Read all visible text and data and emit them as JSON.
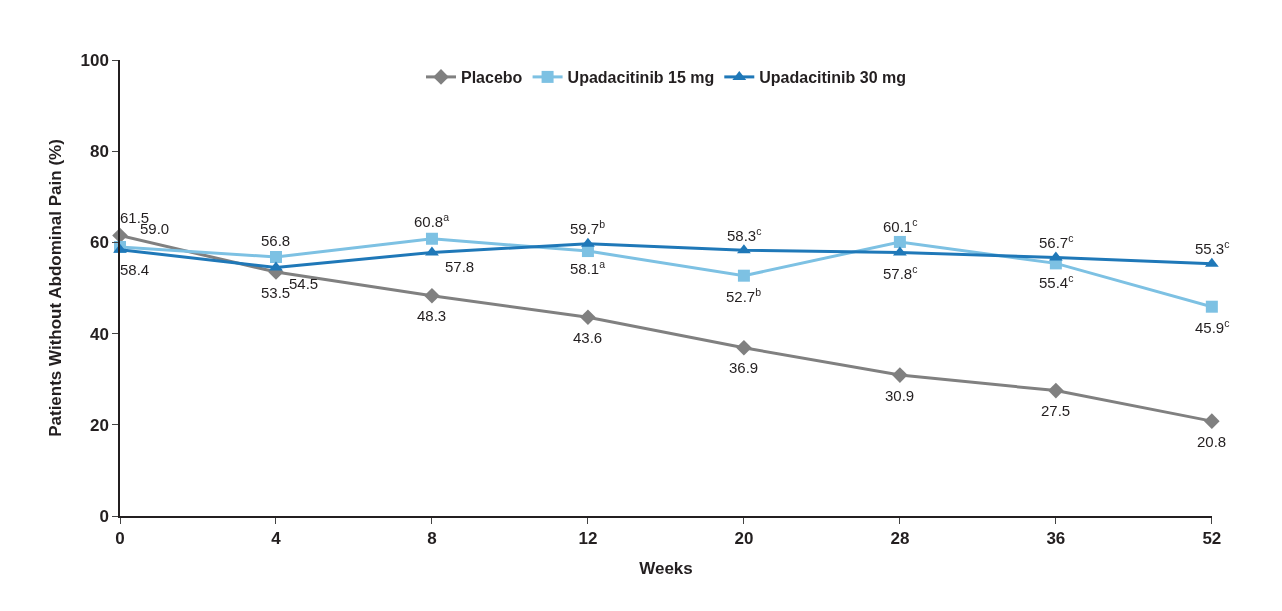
{
  "chart_data": {
    "type": "line",
    "xlabel": "Weeks",
    "ylabel": "Patients Without Abdominal Pain (%)",
    "categories": [
      "0",
      "4",
      "8",
      "12",
      "20",
      "28",
      "36",
      "52"
    ],
    "ylim": [
      0,
      100
    ],
    "yticks": [
      0,
      20,
      40,
      60,
      80,
      100
    ],
    "legend": "top",
    "series": [
      {
        "name": "Placebo",
        "color": "#808080",
        "marker": "diamond",
        "values": [
          61.5,
          53.5,
          48.3,
          43.6,
          36.9,
          30.9,
          27.5,
          20.8
        ],
        "value_labels": [
          "61.5",
          "53.5",
          "48.3",
          "43.6",
          "36.9",
          "30.9",
          "27.5",
          "20.8"
        ]
      },
      {
        "name": "Upadacitinib 15 mg",
        "color": "#7dc1e3",
        "marker": "square",
        "values": [
          59.0,
          56.8,
          60.8,
          58.1,
          52.7,
          60.1,
          55.4,
          45.9
        ],
        "value_labels": [
          "59.0",
          "56.8",
          "60.8$^{a}$",
          "58.1$^{a}$",
          "52.7$^{b}$",
          "60.1$^{c}$",
          "55.4$^{c}$",
          "45.9$^{c}$"
        ]
      },
      {
        "name": "Upadacitinib 30 mg",
        "color": "#1f78b8",
        "marker": "triangle",
        "values": [
          58.4,
          54.5,
          57.8,
          59.7,
          58.3,
          57.8,
          56.7,
          55.3
        ],
        "value_labels": [
          "58.4",
          "54.5",
          "57.8",
          "59.7$^{b}$",
          "58.3$^{c}$",
          "57.8$^{c}$",
          "56.7$^{c}$",
          "55.3$^{c}$"
        ]
      }
    ]
  }
}
